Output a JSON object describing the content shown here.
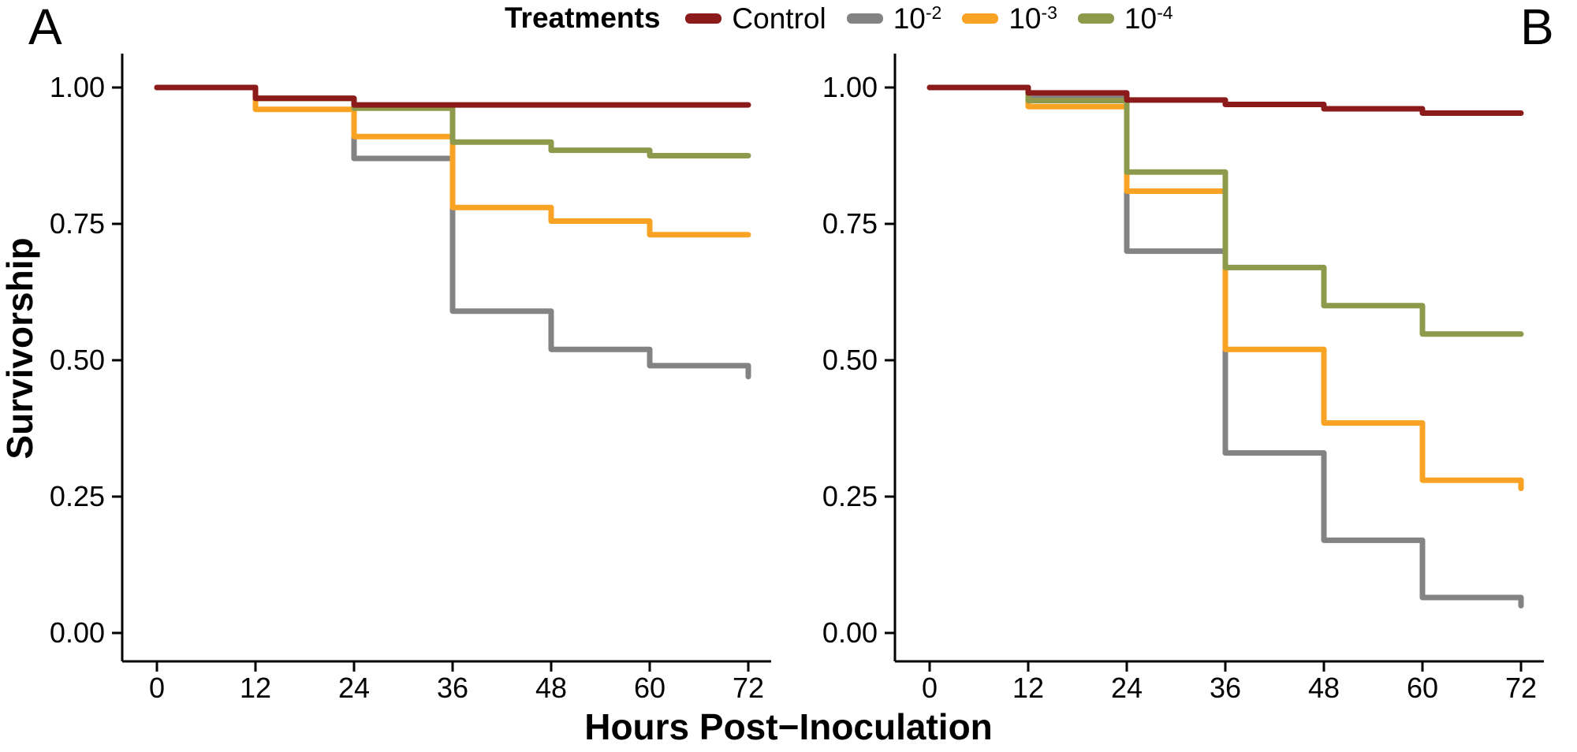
{
  "figure": {
    "panel_a_label": "A",
    "panel_b_label": "B",
    "y_axis_label": "Survivorship",
    "x_axis_label": "Hours Post−Inoculation"
  },
  "legend": {
    "title": "Treatments",
    "items": [
      {
        "label_base": "Control",
        "label_exp": "",
        "color": "#8B1A1B"
      },
      {
        "label_base": "10",
        "label_exp": "-2",
        "color": "#838383"
      },
      {
        "label_base": "10",
        "label_exp": "-3",
        "color": "#F9A325"
      },
      {
        "label_base": "10",
        "label_exp": "-4",
        "color": "#8E9A4B"
      }
    ]
  },
  "colors": {
    "control": "#8B1A1B",
    "dilution_10_2": "#838383",
    "dilution_10_3": "#F9A325",
    "dilution_10_4": "#8E9A4B",
    "axis": "#000000",
    "background": "#ffffff"
  },
  "chart_data": [
    {
      "panel": "A",
      "type": "line",
      "subtype": "kaplan-meier-step",
      "title": "",
      "xlabel": "Hours Post−Inoculation",
      "ylabel": "Survivorship",
      "xlim": [
        0,
        72
      ],
      "ylim": [
        0,
        1
      ],
      "grid": false,
      "legend_position": "top-center",
      "x_ticks": [
        "0",
        "12",
        "24",
        "36",
        "48",
        "60",
        "72"
      ],
      "y_ticks": [
        {
          "value": 1.0,
          "label": "1.00"
        },
        {
          "value": 0.75,
          "label": "0.75"
        },
        {
          "value": 0.5,
          "label": "0.50"
        },
        {
          "value": 0.25,
          "label": "0.25"
        },
        {
          "value": 0.0,
          "label": "0.00"
        }
      ],
      "series": [
        {
          "name": "10^-2",
          "color": "#838383",
          "times": [
            0,
            12,
            24,
            36,
            48,
            60,
            72
          ],
          "values": [
            1.0,
            0.98,
            0.87,
            0.59,
            0.52,
            0.49,
            0.47
          ]
        },
        {
          "name": "10^-3",
          "color": "#F9A325",
          "times": [
            0,
            12,
            24,
            36,
            48,
            60
          ],
          "values": [
            1.0,
            0.96,
            0.91,
            0.78,
            0.755,
            0.73
          ]
        },
        {
          "name": "10^-4",
          "color": "#8E9A4B",
          "times": [
            0,
            12,
            24,
            36,
            48,
            60
          ],
          "values": [
            1.0,
            0.98,
            0.962,
            0.9,
            0.885,
            0.875
          ]
        },
        {
          "name": "Control",
          "color": "#8B1A1B",
          "times": [
            0,
            12,
            24
          ],
          "values": [
            1.0,
            0.98,
            0.968
          ]
        }
      ]
    },
    {
      "panel": "B",
      "type": "line",
      "subtype": "kaplan-meier-step",
      "title": "",
      "xlabel": "Hours Post−Inoculation",
      "ylabel": "Survivorship",
      "xlim": [
        0,
        72
      ],
      "ylim": [
        0,
        1
      ],
      "grid": false,
      "legend_position": "top-center",
      "x_ticks": [
        "0",
        "12",
        "24",
        "36",
        "48",
        "60",
        "72"
      ],
      "y_ticks": [
        {
          "value": 1.0,
          "label": "1.00"
        },
        {
          "value": 0.75,
          "label": "0.75"
        },
        {
          "value": 0.5,
          "label": "0.50"
        },
        {
          "value": 0.25,
          "label": "0.25"
        },
        {
          "value": 0.0,
          "label": "0.00"
        }
      ],
      "series": [
        {
          "name": "10^-2",
          "color": "#838383",
          "times": [
            0,
            12,
            24,
            36,
            48,
            60,
            72
          ],
          "values": [
            1.0,
            0.98,
            0.7,
            0.33,
            0.17,
            0.065,
            0.05
          ]
        },
        {
          "name": "10^-3",
          "color": "#F9A325",
          "times": [
            0,
            12,
            24,
            36,
            48,
            60,
            72
          ],
          "values": [
            1.0,
            0.965,
            0.81,
            0.52,
            0.385,
            0.28,
            0.265
          ]
        },
        {
          "name": "10^-4",
          "color": "#8E9A4B",
          "times": [
            0,
            12,
            24,
            36,
            48,
            60
          ],
          "values": [
            1.0,
            0.976,
            0.845,
            0.67,
            0.6,
            0.548
          ]
        },
        {
          "name": "Control",
          "color": "#8B1A1B",
          "times": [
            0,
            12,
            24,
            36,
            48,
            60
          ],
          "values": [
            1.0,
            0.99,
            0.977,
            0.969,
            0.961,
            0.953
          ]
        }
      ]
    }
  ]
}
